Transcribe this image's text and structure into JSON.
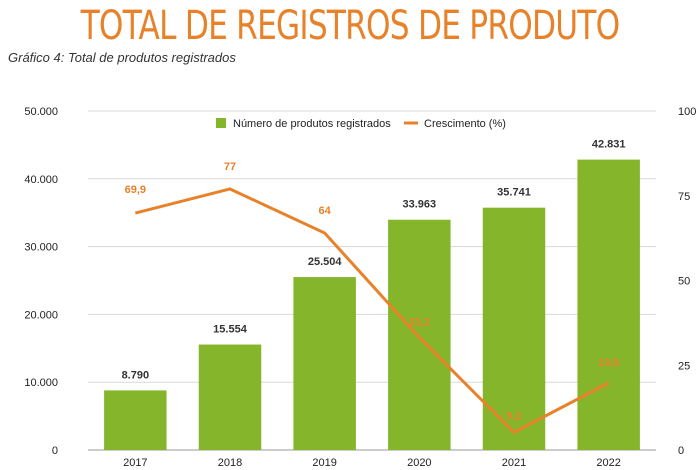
{
  "header": {
    "title": "TOTAL DE REGISTROS DE PRODUTO",
    "subtitle": "Gráfico 4: Total de produtos registrados"
  },
  "colors": {
    "title": "#e8822a",
    "bar": "#84b52a",
    "line": "#e8822a",
    "grid": "#d9d9d9"
  },
  "chart_data": {
    "type": "bar",
    "title": "Total de produtos registrados",
    "categories": [
      "2017",
      "2018",
      "2019",
      "2020",
      "2021",
      "2022"
    ],
    "series": [
      {
        "name": "Número de produtos registrados",
        "type": "bar",
        "axis": "left",
        "values": [
          8790,
          15554,
          25504,
          33963,
          35741,
          42831
        ],
        "labels": [
          "8.790",
          "15.554",
          "25.504",
          "33.963",
          "35.741",
          "42.831"
        ]
      },
      {
        "name": "Crescimento (%)",
        "type": "line",
        "axis": "right",
        "values": [
          69.9,
          77,
          64,
          33.2,
          5.2,
          19.8
        ],
        "labels": [
          "69,9",
          "77",
          "64",
          "33,2",
          "5,2",
          "19,8"
        ]
      }
    ],
    "y_left": {
      "range": [
        0,
        50000
      ],
      "ticks": [
        0,
        10000,
        20000,
        30000,
        40000,
        50000
      ],
      "tick_labels": [
        "0",
        "10.000",
        "20.000",
        "30.000",
        "40.000",
        "50.000"
      ]
    },
    "y_right": {
      "range": [
        0,
        100
      ],
      "ticks": [
        0,
        25,
        50,
        75,
        100
      ],
      "tick_labels": [
        "0",
        "25",
        "50",
        "75",
        "100"
      ]
    },
    "grid": true,
    "legend_position": "top-center",
    "xlabel": "",
    "ylabel": ""
  }
}
